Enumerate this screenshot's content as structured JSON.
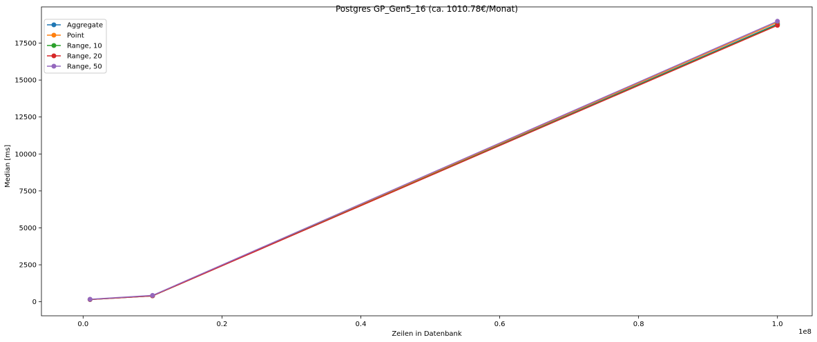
{
  "chart_data": {
    "type": "line",
    "title": "Postgres GP_Gen5_16 (ca. 1010.78€/Monat)",
    "xlabel": "Zeilen in Datenbank",
    "ylabel": "Median [ms]",
    "x_offset_label": "1e8",
    "xlim": [
      -6000000,
      105000000
    ],
    "ylim": [
      -950,
      19950
    ],
    "x": [
      1000000,
      10000000,
      100000000
    ],
    "x_ticks": [
      0,
      0.2,
      0.4,
      0.6,
      0.8,
      1.0
    ],
    "x_tick_labels": [
      "0.0",
      "0.2",
      "0.4",
      "0.6",
      "0.8",
      "1.0"
    ],
    "y_ticks": [
      0,
      2500,
      5000,
      7500,
      10000,
      12500,
      15000,
      17500
    ],
    "y_tick_labels": [
      "0",
      "2500",
      "5000",
      "7500",
      "10000",
      "12500",
      "15000",
      "17500"
    ],
    "grid": false,
    "legend_position": "top-left",
    "series": [
      {
        "name": "Aggregate",
        "color": "#1f77b4",
        "values": [
          150,
          400,
          18800
        ]
      },
      {
        "name": "Point",
        "color": "#ff7f0e",
        "values": [
          160,
          410,
          18900
        ]
      },
      {
        "name": "Range, 10",
        "color": "#2ca02c",
        "values": [
          150,
          400,
          18750
        ]
      },
      {
        "name": "Range, 20",
        "color": "#d62728",
        "values": [
          150,
          400,
          18700
        ]
      },
      {
        "name": "Range, 50",
        "color": "#9467bd",
        "values": [
          170,
          430,
          18980
        ]
      }
    ]
  }
}
